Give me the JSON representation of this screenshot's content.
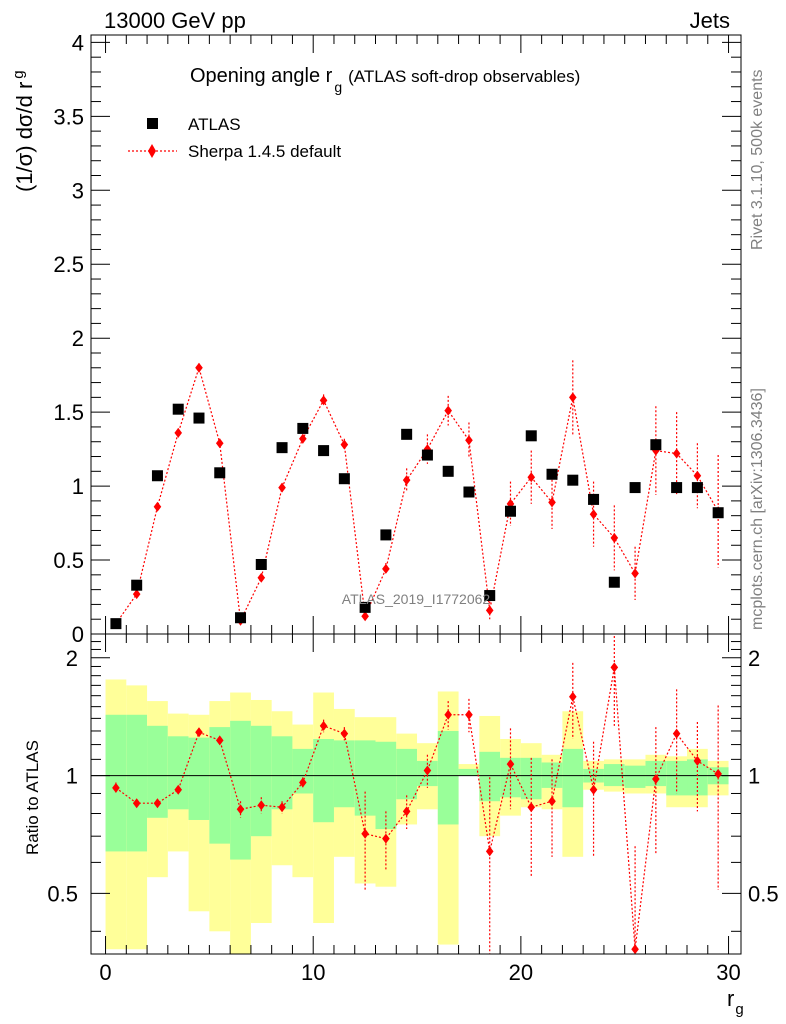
{
  "header": {
    "left": "13000 GeV pp",
    "right": "Jets",
    "title_main": "Opening angle r",
    "title_sub": "g",
    "title_note": "(ATLAS soft-drop observables)",
    "watermark": "ATLAS_2019_I1772062",
    "side_top": "Rivet 3.1.10,  500k events",
    "side_bottom": "mcplots.cern.ch [arXiv:1306.3436]"
  },
  "legend": {
    "data_label": "ATLAS",
    "mc_label": "Sherpa 1.4.5 default"
  },
  "axes": {
    "y_main_label": "(1/σ) dσ/d r",
    "y_main_sub": "g",
    "y_ratio_label": "Ratio to ATLAS",
    "x_label": "r",
    "x_sub": "g"
  },
  "colors": {
    "data": "#000000",
    "mc": "#ff0000",
    "band_inner": "#99ff99",
    "band_outer": "#ffff99"
  },
  "chart_data": {
    "type": "scatter",
    "x": [
      0.5,
      1.5,
      2.5,
      3.5,
      4.5,
      5.5,
      6.5,
      7.5,
      8.5,
      9.5,
      10.5,
      11.5,
      12.5,
      13.5,
      14.5,
      15.5,
      16.5,
      17.5,
      18.5,
      19.5,
      20.5,
      21.5,
      22.5,
      23.5,
      24.5,
      25.5,
      26.5,
      27.5,
      28.5,
      29.5
    ],
    "xlim": [
      -0.7,
      30.6
    ],
    "ylim": [
      0,
      4.05
    ],
    "ratio_ylim": [
      0.35,
      2.3
    ],
    "x_ticks": [
      0,
      10,
      20,
      30
    ],
    "y_ticks": [
      0,
      0.5,
      1,
      1.5,
      2,
      2.5,
      3,
      3.5,
      4
    ],
    "ratio_ticks": [
      0.5,
      1,
      2
    ],
    "series": [
      {
        "name": "ATLAS",
        "values": [
          0.07,
          0.33,
          1.07,
          1.52,
          1.46,
          1.09,
          0.11,
          0.47,
          1.26,
          1.39,
          1.24,
          1.05,
          0.18,
          0.67,
          1.35,
          1.21,
          1.1,
          0.96,
          0.26,
          0.83,
          1.34,
          1.08,
          1.04,
          0.91,
          0.35,
          0.99,
          1.28,
          0.99,
          0.99,
          0.82
        ]
      },
      {
        "name": "Sherpa 1.4.5 default",
        "values": [
          0.07,
          0.27,
          0.86,
          1.36,
          1.8,
          1.29,
          0.09,
          0.38,
          0.99,
          1.32,
          1.58,
          1.28,
          0.12,
          0.44,
          1.04,
          1.25,
          1.51,
          1.31,
          0.16,
          0.88,
          1.06,
          0.89,
          1.6,
          0.81,
          0.65,
          0.41,
          1.24,
          1.22,
          1.07,
          0.83
        ],
        "errors": [
          0.01,
          0.01,
          0.02,
          0.03,
          0.03,
          0.03,
          0.01,
          0.02,
          0.03,
          0.03,
          0.04,
          0.04,
          0.02,
          0.04,
          0.08,
          0.1,
          0.1,
          0.12,
          0.06,
          0.15,
          0.18,
          0.18,
          0.25,
          0.22,
          0.22,
          0.18,
          0.3,
          0.28,
          0.22,
          0.38
        ]
      }
    ],
    "ratio": [
      0.93,
      0.85,
      0.85,
      0.92,
      1.29,
      1.23,
      0.82,
      0.84,
      0.83,
      0.96,
      1.34,
      1.28,
      0.71,
      0.69,
      0.81,
      1.03,
      1.43,
      1.43,
      0.64,
      1.07,
      0.83,
      0.86,
      1.59,
      0.92,
      1.89,
      0.36,
      0.98,
      1.28,
      1.09,
      1.01
    ],
    "ratio_errors": [
      0.03,
      0.02,
      0.02,
      0.02,
      0.03,
      0.03,
      0.04,
      0.04,
      0.03,
      0.03,
      0.05,
      0.05,
      0.2,
      0.12,
      0.08,
      0.1,
      0.12,
      0.14,
      0.35,
      0.25,
      0.28,
      0.24,
      0.35,
      0.3,
      0.55,
      0.3,
      0.35,
      0.38,
      0.28,
      0.5
    ],
    "band_inner_lower": [
      0.64,
      0.64,
      0.78,
      0.82,
      0.77,
      0.67,
      0.61,
      0.7,
      0.82,
      0.9,
      0.76,
      0.83,
      0.79,
      0.73,
      0.87,
      0.94,
      0.75,
      1.0,
      0.86,
      0.88,
      0.87,
      0.93,
      0.83,
      0.96,
      0.94,
      0.93,
      0.94,
      0.89,
      0.89,
      0.95
    ],
    "band_inner_upper": [
      1.43,
      1.43,
      1.34,
      1.26,
      1.25,
      1.33,
      1.38,
      1.34,
      1.26,
      1.17,
      1.24,
      1.23,
      1.23,
      1.22,
      1.17,
      1.09,
      1.3,
      1.04,
      1.15,
      1.11,
      1.11,
      1.08,
      1.17,
      1.04,
      1.07,
      1.06,
      1.09,
      1.09,
      1.1,
      1.05
    ],
    "band_outer_lower": [
      0.36,
      0.36,
      0.55,
      0.64,
      0.45,
      0.4,
      0.35,
      0.42,
      0.59,
      0.55,
      0.42,
      0.62,
      0.53,
      0.52,
      0.75,
      0.82,
      0.37,
      1.0,
      0.7,
      0.79,
      0.83,
      0.82,
      0.62,
      0.92,
      0.91,
      0.9,
      0.9,
      0.83,
      0.83,
      0.89
    ],
    "band_outer_upper": [
      1.76,
      1.7,
      1.55,
      1.44,
      1.43,
      1.55,
      1.63,
      1.56,
      1.46,
      1.35,
      1.63,
      1.48,
      1.41,
      1.41,
      1.28,
      1.21,
      1.64,
      1.07,
      1.42,
      1.24,
      1.21,
      1.13,
      1.46,
      1.09,
      1.1,
      1.1,
      1.13,
      1.12,
      1.17,
      1.09
    ]
  }
}
